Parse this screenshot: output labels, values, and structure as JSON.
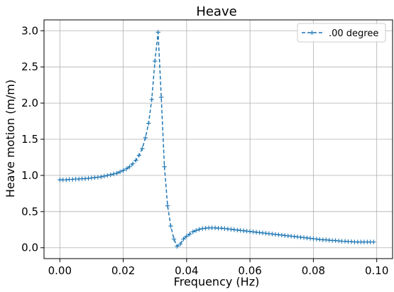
{
  "chart_data": {
    "type": "line",
    "title": "Heave",
    "xlabel": "Frequency (Hz)",
    "ylabel": "Heave motion (m/m)",
    "xlim": [
      -0.005,
      0.105
    ],
    "ylim": [
      -0.15,
      3.15
    ],
    "xticks": [
      0.0,
      0.02,
      0.04,
      0.06,
      0.08,
      0.1
    ],
    "xtick_labels": [
      "0.00",
      "0.02",
      "0.04",
      "0.06",
      "0.08",
      "0.10"
    ],
    "yticks": [
      0.0,
      0.5,
      1.0,
      1.5,
      2.0,
      2.5,
      3.0
    ],
    "ytick_labels": [
      "0.0",
      "0.5",
      "1.0",
      "1.5",
      "2.0",
      "2.5",
      "3.0"
    ],
    "grid": true,
    "legend_position": "top-right",
    "series": [
      {
        "name": ".00 degree",
        "color": "#1f77b4",
        "line_style": "dashed",
        "marker": "+",
        "x": [
          0.0,
          0.001,
          0.002,
          0.003,
          0.004,
          0.005,
          0.006,
          0.007,
          0.008,
          0.009,
          0.01,
          0.011,
          0.012,
          0.013,
          0.014,
          0.015,
          0.016,
          0.017,
          0.018,
          0.019,
          0.02,
          0.021,
          0.022,
          0.023,
          0.024,
          0.025,
          0.026,
          0.027,
          0.028,
          0.029,
          0.03,
          0.031,
          0.032,
          0.033,
          0.034,
          0.035,
          0.036,
          0.037,
          0.038,
          0.039,
          0.04,
          0.041,
          0.042,
          0.043,
          0.044,
          0.045,
          0.046,
          0.047,
          0.048,
          0.049,
          0.05,
          0.051,
          0.052,
          0.053,
          0.054,
          0.055,
          0.056,
          0.057,
          0.058,
          0.059,
          0.06,
          0.061,
          0.062,
          0.063,
          0.064,
          0.065,
          0.066,
          0.067,
          0.068,
          0.069,
          0.07,
          0.071,
          0.072,
          0.073,
          0.074,
          0.075,
          0.076,
          0.077,
          0.078,
          0.079,
          0.08,
          0.081,
          0.082,
          0.083,
          0.084,
          0.085,
          0.086,
          0.087,
          0.088,
          0.089,
          0.09,
          0.091,
          0.092,
          0.093,
          0.094,
          0.095,
          0.096,
          0.097,
          0.098,
          0.099
        ],
        "y": [
          0.94,
          0.94,
          0.94,
          0.945,
          0.945,
          0.95,
          0.95,
          0.955,
          0.955,
          0.96,
          0.965,
          0.97,
          0.975,
          0.98,
          0.99,
          1.0,
          1.01,
          1.02,
          1.03,
          1.05,
          1.07,
          1.09,
          1.12,
          1.16,
          1.21,
          1.28,
          1.37,
          1.52,
          1.72,
          2.05,
          2.58,
          2.98,
          2.08,
          1.12,
          0.58,
          0.3,
          0.12,
          0.02,
          0.05,
          0.12,
          0.16,
          0.19,
          0.22,
          0.24,
          0.255,
          0.265,
          0.27,
          0.275,
          0.275,
          0.275,
          0.27,
          0.27,
          0.265,
          0.26,
          0.255,
          0.25,
          0.245,
          0.24,
          0.235,
          0.23,
          0.225,
          0.22,
          0.215,
          0.21,
          0.205,
          0.2,
          0.195,
          0.19,
          0.185,
          0.18,
          0.175,
          0.17,
          0.165,
          0.16,
          0.155,
          0.15,
          0.145,
          0.14,
          0.135,
          0.13,
          0.125,
          0.12,
          0.115,
          0.11,
          0.11,
          0.105,
          0.1,
          0.1,
          0.095,
          0.09,
          0.09,
          0.085,
          0.085,
          0.08,
          0.08,
          0.08,
          0.08,
          0.08,
          0.08,
          0.08
        ]
      }
    ]
  }
}
